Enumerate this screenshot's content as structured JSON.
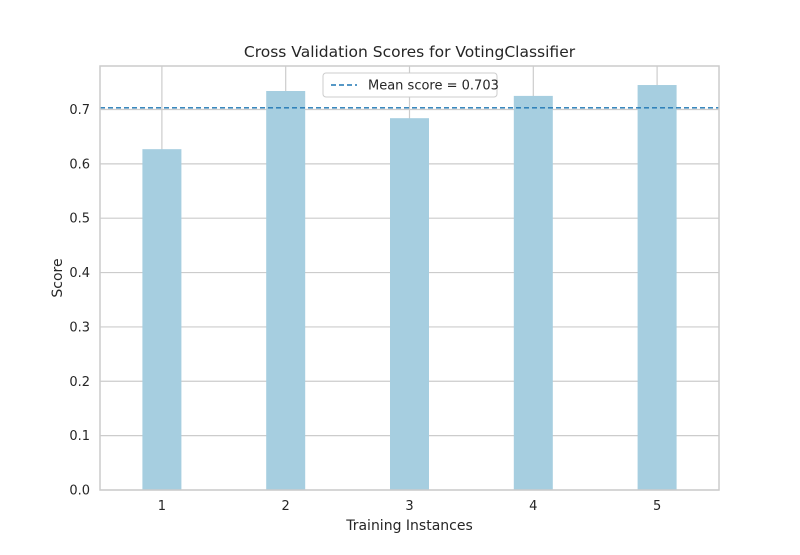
{
  "chart_data": {
    "type": "bar",
    "title": "Cross Validation Scores for VotingClassifier",
    "xlabel": "Training Instances",
    "ylabel": "Score",
    "categories": [
      "1",
      "2",
      "3",
      "4",
      "5"
    ],
    "values": [
      0.627,
      0.734,
      0.684,
      0.725,
      0.745
    ],
    "mean": 0.703,
    "ylim": [
      0.0,
      0.78
    ],
    "yticks": [
      "0.0",
      "0.1",
      "0.2",
      "0.3",
      "0.4",
      "0.5",
      "0.6",
      "0.7"
    ],
    "grid": true,
    "legend": {
      "position": "top-center",
      "label": "Mean score = 0.703"
    },
    "colors": {
      "bar": "#a6cee0",
      "mean_line": "#1f77b4",
      "grid": "#cccccc",
      "axes": "#cccccc"
    }
  }
}
